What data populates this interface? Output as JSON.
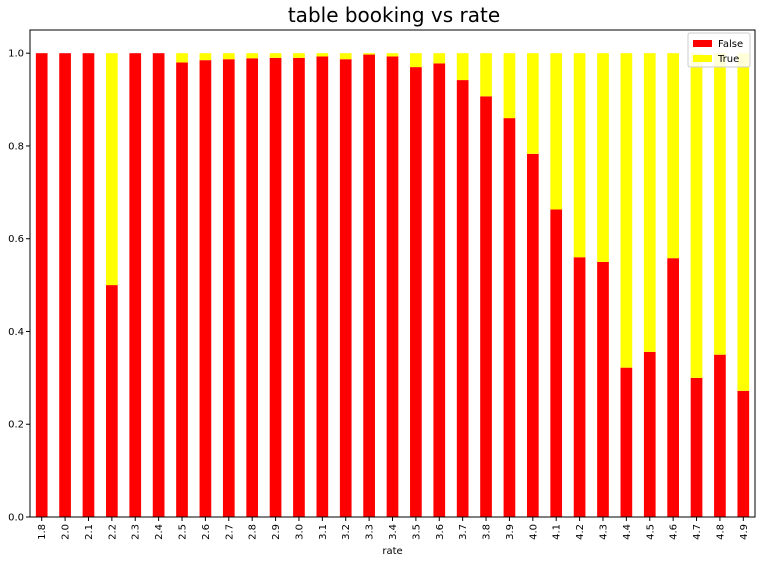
{
  "chart_data": {
    "type": "bar",
    "stacked": true,
    "title": "table booking vs rate",
    "xlabel": "rate",
    "ylabel": "",
    "ylim": [
      0,
      1.05
    ],
    "yticks": [
      "0.0",
      "0.2",
      "0.4",
      "0.6",
      "0.8",
      "1.0"
    ],
    "categories": [
      "1.8",
      "2.0",
      "2.1",
      "2.2",
      "2.3",
      "2.4",
      "2.5",
      "2.6",
      "2.7",
      "2.8",
      "2.9",
      "3.0",
      "3.1",
      "3.2",
      "3.3",
      "3.4",
      "3.5",
      "3.6",
      "3.7",
      "3.8",
      "3.9",
      "4.0",
      "4.1",
      "4.2",
      "4.3",
      "4.4",
      "4.5",
      "4.6",
      "4.7",
      "4.8",
      "4.9"
    ],
    "series": [
      {
        "name": "False",
        "color": "#ff0000",
        "values": [
          1.0,
          1.0,
          1.0,
          0.5,
          1.0,
          1.0,
          0.98,
          0.985,
          0.987,
          0.989,
          0.99,
          0.99,
          0.993,
          0.987,
          0.997,
          0.993,
          0.97,
          0.978,
          0.942,
          0.907,
          0.86,
          0.783,
          0.663,
          0.56,
          0.55,
          0.322,
          0.356,
          0.558,
          0.3,
          0.35,
          0.272
        ]
      },
      {
        "name": "True",
        "color": "#ffff00",
        "values": [
          0.0,
          0.0,
          0.0,
          0.5,
          0.0,
          0.0,
          0.02,
          0.015,
          0.013,
          0.011,
          0.01,
          0.01,
          0.007,
          0.013,
          0.003,
          0.007,
          0.03,
          0.022,
          0.058,
          0.093,
          0.14,
          0.217,
          0.337,
          0.44,
          0.45,
          0.678,
          0.644,
          0.442,
          0.7,
          0.65,
          0.728
        ]
      }
    ],
    "legend": {
      "position": "top-right",
      "items": [
        "False",
        "True"
      ]
    },
    "grid": false
  }
}
